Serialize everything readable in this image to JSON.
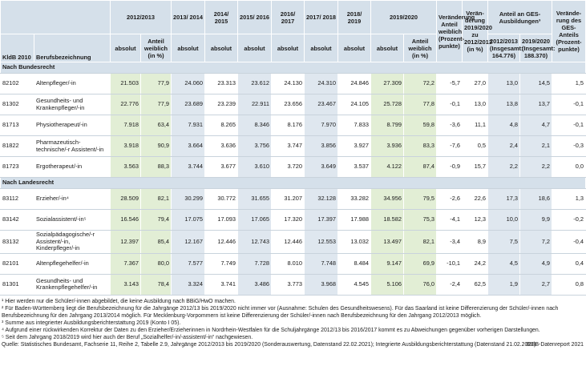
{
  "header": {
    "kldb": "KldB 2010",
    "beruf": "Berufsbezeichnung",
    "years": [
      "2012/2013",
      "2013/ 2014",
      "2014/ 2015",
      "2015/ 2016",
      "2016/ 2017",
      "2017/ 2018",
      "2018/ 2019",
      "2019/2020"
    ],
    "absolut": "absolut",
    "anteil": "Anteil weiblich (in %)",
    "change_share": "Veränderung Anteil weiblich (Prozent-punkte)",
    "change_pct": "Verän-derung 2019/2020 zu 2012/2013 (in %)",
    "ges": "Anteil an GES-Ausbildungen³",
    "ges_2012": "2012/2013 (Insgesamt: 164.776)",
    "ges_2019": "2019/2020 (Insgesamt: 188.370)",
    "ges_change": "Verände-rung des GES-Anteils (Prozent-punkte)"
  },
  "sections": [
    {
      "title": "Nach Bundesrecht",
      "rows": [
        [
          "82102",
          "Altenpfleger/-in",
          "21.503",
          "77,9",
          "24.060",
          "23.313",
          "23.612",
          "24.130",
          "24.310",
          "24.846",
          "27.309",
          "72,2",
          "-5,7",
          "27,0",
          "13,0",
          "14,5",
          "1,5"
        ],
        [
          "81302",
          "Gesundheits- und Krankenpfleger/-in",
          "22.776",
          "77,9",
          "23.689",
          "23.239",
          "22.911",
          "23.656",
          "23.467",
          "24.105",
          "25.728",
          "77,8",
          "-0,1",
          "13,0",
          "13,8",
          "13,7",
          "-0,1"
        ],
        [
          "81713",
          "Physiotherapeut/-in",
          "7.918",
          "63,4",
          "7.931",
          "8.265",
          "8.346",
          "8.176",
          "7.970",
          "7.833",
          "8.799",
          "59,8",
          "-3,6",
          "11,1",
          "4,8",
          "4,7",
          "-0,1"
        ],
        [
          "81822",
          "Pharmazeutisch-technische/-r Assistent/-in",
          "3.918",
          "90,9",
          "3.664",
          "3.636",
          "3.756",
          "3.747",
          "3.856",
          "3.927",
          "3.936",
          "83,3",
          "-7,6",
          "0,5",
          "2,4",
          "2,1",
          "-0,3"
        ],
        [
          "81723",
          "Ergotherapeut/-in",
          "3.563",
          "88,3",
          "3.744",
          "3.677",
          "3.610",
          "3.720",
          "3.649",
          "3.537",
          "4.122",
          "87,4",
          "-0,9",
          "15,7",
          "2,2",
          "2,2",
          "0,0"
        ]
      ]
    },
    {
      "title": "Nach Landesrecht",
      "rows": [
        [
          "83112",
          "Erzieher/-in⁴",
          "28.509",
          "82,1",
          "30.299",
          "30.772",
          "31.655",
          "31.207",
          "32.128",
          "33.282",
          "34.956",
          "79,5",
          "-2,6",
          "22,6",
          "17,3",
          "18,6",
          "1,3"
        ],
        [
          "83142",
          "Sozialassistent/-in⁵",
          "16.546",
          "79,4",
          "17.075",
          "17.093",
          "17.065",
          "17.320",
          "17.397",
          "17.988",
          "18.582",
          "75,3",
          "-4,1",
          "12,3",
          "10,0",
          "9,9",
          "-0,2"
        ],
        [
          "83132",
          "Sozialpädagogische/-r Assistent/-in, Kinderpfleger/-in",
          "12.397",
          "85,4",
          "12.167",
          "12.446",
          "12.743",
          "12.446",
          "12.553",
          "13.032",
          "13.497",
          "82,1",
          "-3,4",
          "8,9",
          "7,5",
          "7,2",
          "-0,4"
        ],
        [
          "82101",
          "Altenpflegehelfer/-in",
          "7.367",
          "80,0",
          "7.577",
          "7.749",
          "7.728",
          "8.010",
          "7.748",
          "8.484",
          "9.147",
          "69,9",
          "-10,1",
          "24,2",
          "4,5",
          "4,9",
          "0,4"
        ],
        [
          "81301",
          "Gesundheits- und Krankenpflegehelfer/-in",
          "3.143",
          "78,4",
          "3.324",
          "3.741",
          "3.486",
          "3.773",
          "3.968",
          "4.545",
          "5.106",
          "76,0",
          "-2,4",
          "62,5",
          "1,9",
          "2,7",
          "0,8"
        ]
      ]
    }
  ],
  "footnotes": [
    "¹ Hier werden nur die Schüler/-innen abgebildet, die keine Ausbildung nach BBiG/HwO machen.",
    "² Für Baden-Württemberg liegt die Berufsbezeichnung für die Jahrgänge 2012/13 bis 2019/2020 nicht immer vor (Ausnahme: Schulen des Gesundheitswesens). Für das Saarland ist keine Differenzierung der Schüler/-innen nach Berufsbezeichnung für den Jahrgang 2013/2014 möglich. Für Mecklenburg-Vorpommern ist keine Differenzierung der Schüler/-innen nach Berufsbezeichnung für den Jahrgang 2012/2013 möglich.",
    "³ Summe aus integrierter Ausbildungsberichterstattung 2019 (Konto I 05).",
    "⁴ Aufgrund einer rückwirkenden Korrektur der Daten zu den Erzieher/Erzieherinnen in Nordrhein-Westfalen für die Schuljahrgänge 2012/13 bis 2016/2017 kommt es zu Abweichungen gegenüber vorherigen Darstellungen.",
    "⁵ Seit dem Jahrgang 2018/2019 wird hier auch der Beruf „Sozialhelfer/-in/-assistent/-in“ nachgewiesen."
  ],
  "source": "Quelle: Statistisches Bundesamt, Fachserie 11, Reihe 2, Tabelle 2.9, Jahrgänge 2012/2013 bis 2019/2020 (Sonderauswertung, Datenstand 22.02.2021); Integrierte Ausbildungsberichterstattung (Datenstand 21.02.2021)",
  "credit": "BIBB-Datenreport 2021"
}
